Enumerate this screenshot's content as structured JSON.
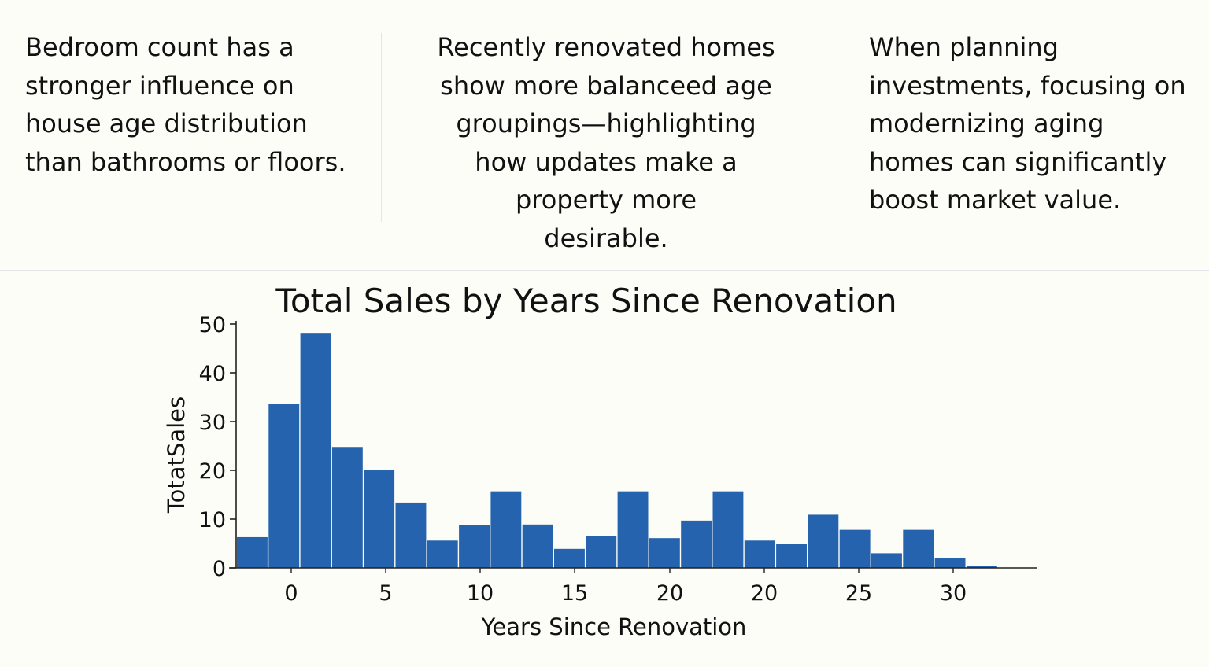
{
  "insights": [
    {
      "text": "Bedroom count has a\nstronger influence on\nhouse age distribution\nthan bathrooms or floors."
    },
    {
      "text": "Recently renovated homes\nshow more balanceed age\ngroupings—highlighting\nhow updates make a\nproperty more\ndesirable."
    },
    {
      "text": "When planning\ninvestments, focusing on\nmodernizing aging\nhomes can significantly\nboost market value."
    }
  ],
  "chart_data": {
    "type": "bar",
    "title": "Total Sales by Years Since Renovation",
    "xlabel": "Years Since Renovation",
    "ylabel": "TotatSales",
    "ylim": [
      0,
      50
    ],
    "yticks": [
      0,
      10,
      20,
      30,
      40,
      50
    ],
    "xtick_labels": [
      "0",
      "5",
      "10",
      "15",
      "20",
      "20",
      "25",
      "30"
    ],
    "values": [
      6.3,
      33.6,
      48.2,
      24.8,
      20.0,
      13.4,
      5.6,
      8.8,
      15.7,
      8.9,
      3.9,
      6.6,
      15.7,
      6.1,
      9.7,
      15.7,
      5.6,
      4.9,
      10.9,
      7.8,
      3.0,
      7.8,
      2.0,
      0.4
    ],
    "bar_color": "#2563ae",
    "grid": false,
    "legend": "none"
  }
}
